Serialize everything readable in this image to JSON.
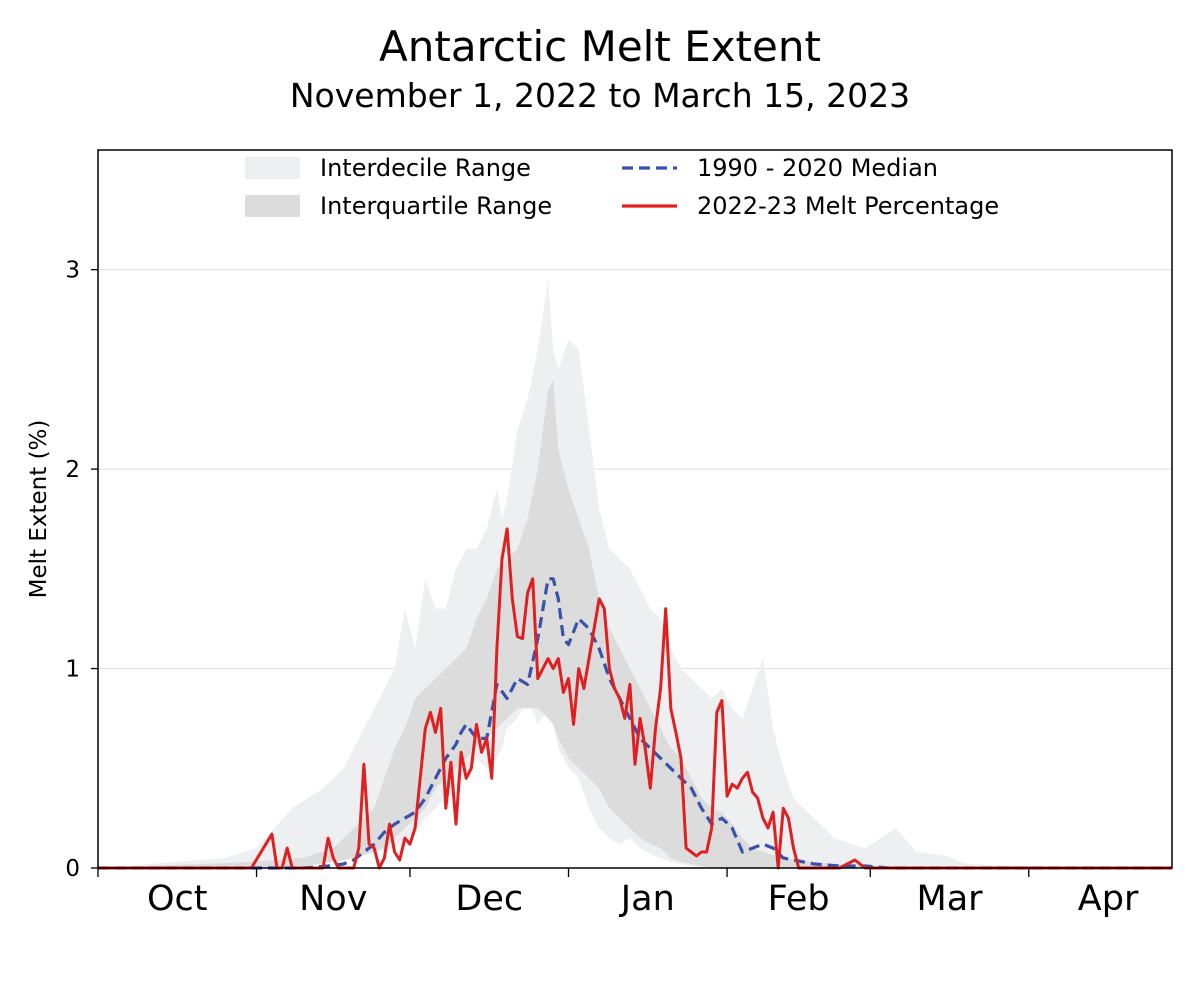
{
  "chart_data": {
    "type": "area",
    "title": "Antarctic Melt Extent",
    "subtitle": "November 1, 2022 to March 15, 2023",
    "ylabel": "Melt Extent (%)",
    "xlabel": "",
    "ylim": [
      0,
      3.6
    ],
    "xlim_days_from_oct1": [
      0,
      210
    ],
    "yticks": [
      0,
      1,
      2,
      3
    ],
    "grid": "horizontal",
    "legend_position": "top",
    "month_labels": [
      {
        "label": "Oct",
        "day": 0
      },
      {
        "label": "Nov",
        "day": 31
      },
      {
        "label": "Dec",
        "day": 61
      },
      {
        "label": "Jan",
        "day": 92
      },
      {
        "label": "Feb",
        "day": 123
      },
      {
        "label": "Mar",
        "day": 151
      },
      {
        "label": "Apr",
        "day": 182
      }
    ],
    "month_end_day": 213,
    "series": [
      {
        "name": "Interdecile Range",
        "kind": "band",
        "color": "#eeeff0",
        "x": [
          0,
          25,
          31,
          38,
          44,
          48,
          54,
          58,
          60,
          62,
          64,
          66,
          68,
          70,
          72,
          74,
          76,
          78,
          79,
          80,
          82,
          84,
          86,
          88,
          89,
          90,
          92,
          94,
          96,
          98,
          100,
          102,
          104,
          106,
          108,
          110,
          112,
          114,
          116,
          118,
          120,
          122,
          124,
          126,
          128,
          130,
          132,
          134,
          136,
          140,
          144,
          150,
          156,
          160,
          166,
          170,
          180,
          210
        ],
        "upper": [
          0,
          0.05,
          0.1,
          0.3,
          0.4,
          0.5,
          0.8,
          1.0,
          1.3,
          1.1,
          1.45,
          1.3,
          1.3,
          1.5,
          1.6,
          1.6,
          1.7,
          1.9,
          1.75,
          1.85,
          2.2,
          2.35,
          2.6,
          2.95,
          2.6,
          2.5,
          2.65,
          2.6,
          2.2,
          1.8,
          1.6,
          1.55,
          1.5,
          1.4,
          1.3,
          1.25,
          1.1,
          1.0,
          0.95,
          0.9,
          0.85,
          0.9,
          0.8,
          0.75,
          0.9,
          1.05,
          0.7,
          0.5,
          0.35,
          0.25,
          0.15,
          0.1,
          0.2,
          0.08,
          0.06,
          0.02,
          0.01,
          0
        ],
        "lower": [
          0,
          0,
          0,
          0,
          0.02,
          0.04,
          0.08,
          0.1,
          0.15,
          0.18,
          0.25,
          0.3,
          0.35,
          0.4,
          0.45,
          0.55,
          0.5,
          0.55,
          0.6,
          0.7,
          0.75,
          0.85,
          0.72,
          0.8,
          0.72,
          0.6,
          0.5,
          0.45,
          0.3,
          0.2,
          0.15,
          0.12,
          0.15,
          0.1,
          0.07,
          0.05,
          0.03,
          0.02,
          0.01,
          0,
          0,
          0,
          0,
          0,
          0,
          0,
          0,
          0,
          0,
          0,
          0,
          0,
          0,
          0,
          0,
          0,
          0,
          0
        ]
      },
      {
        "name": "Interquartile Range",
        "kind": "band",
        "color": "#dcdcdd",
        "x": [
          0,
          30,
          40,
          46,
          50,
          54,
          56,
          58,
          60,
          62,
          64,
          66,
          68,
          70,
          72,
          74,
          76,
          78,
          80,
          82,
          84,
          86,
          88,
          89,
          90,
          92,
          94,
          96,
          98,
          100,
          102,
          104,
          106,
          108,
          110,
          112,
          114,
          116,
          118,
          120,
          122,
          124,
          126,
          128,
          130,
          134,
          140,
          150,
          210
        ],
        "upper": [
          0,
          0.03,
          0.05,
          0.1,
          0.2,
          0.3,
          0.45,
          0.6,
          0.7,
          0.85,
          0.9,
          0.95,
          1.0,
          1.05,
          1.1,
          1.25,
          1.35,
          1.5,
          1.55,
          1.6,
          1.75,
          2.0,
          2.4,
          2.45,
          2.1,
          1.9,
          1.75,
          1.6,
          1.35,
          1.2,
          1.1,
          1.0,
          0.9,
          0.8,
          0.7,
          0.6,
          0.55,
          0.45,
          0.35,
          0.3,
          0.28,
          0.22,
          0.15,
          0.1,
          0.08,
          0.05,
          0.03,
          0.01,
          0
        ],
        "lower": [
          0,
          0,
          0.01,
          0.03,
          0.05,
          0.08,
          0.1,
          0.15,
          0.2,
          0.25,
          0.3,
          0.4,
          0.45,
          0.5,
          0.55,
          0.6,
          0.65,
          0.7,
          0.75,
          0.8,
          0.8,
          0.8,
          0.75,
          0.72,
          0.65,
          0.55,
          0.5,
          0.45,
          0.4,
          0.3,
          0.25,
          0.2,
          0.15,
          0.12,
          0.1,
          0.05,
          0.03,
          0.02,
          0.01,
          0,
          0,
          0,
          0,
          0,
          0,
          0,
          0,
          0,
          0
        ]
      },
      {
        "name": "1990 - 2020 Median",
        "kind": "line",
        "style": "dashed",
        "color": "#3a52a8",
        "x": [
          0,
          30,
          40,
          45,
          48,
          50,
          52,
          54,
          56,
          58,
          60,
          62,
          64,
          66,
          68,
          70,
          71,
          72,
          74,
          76,
          78,
          80,
          82,
          84,
          86,
          88,
          89,
          90,
          91,
          92,
          94,
          96,
          98,
          100,
          102,
          104,
          106,
          108,
          110,
          112,
          114,
          116,
          118,
          120,
          122,
          124,
          126,
          128,
          130,
          132,
          134,
          136,
          138,
          140,
          145,
          150,
          155,
          210
        ],
        "y": [
          0,
          0,
          0,
          0.01,
          0.02,
          0.04,
          0.08,
          0.12,
          0.18,
          0.22,
          0.25,
          0.28,
          0.35,
          0.45,
          0.55,
          0.62,
          0.68,
          0.72,
          0.65,
          0.65,
          0.92,
          0.85,
          0.95,
          0.92,
          1.15,
          1.45,
          1.45,
          1.35,
          1.15,
          1.12,
          1.25,
          1.2,
          1.1,
          0.95,
          0.85,
          0.75,
          0.65,
          0.6,
          0.55,
          0.5,
          0.45,
          0.4,
          0.3,
          0.22,
          0.25,
          0.2,
          0.08,
          0.1,
          0.12,
          0.1,
          0.05,
          0.04,
          0.03,
          0.02,
          0.01,
          0.01,
          0,
          0
        ]
      },
      {
        "name": "2022-23 Melt Percentage",
        "kind": "line",
        "style": "solid",
        "color": "#e02020",
        "x": [
          0,
          30,
          34,
          35,
          36,
          37,
          38,
          39,
          40,
          44,
          45,
          46,
          47,
          48,
          49,
          50,
          51,
          52,
          53,
          54,
          55,
          56,
          57,
          58,
          59,
          60,
          61,
          62,
          63,
          64,
          65,
          66,
          67,
          68,
          69,
          70,
          71,
          72,
          73,
          74,
          75,
          76,
          77,
          78,
          79,
          80,
          81,
          82,
          83,
          84,
          85,
          86,
          87,
          88,
          89,
          90,
          91,
          92,
          93,
          94,
          95,
          96,
          97,
          98,
          99,
          100,
          101,
          102,
          103,
          104,
          105,
          106,
          107,
          108,
          109,
          110,
          111,
          112,
          113,
          114,
          115,
          116,
          117,
          118,
          119,
          120,
          121,
          122,
          123,
          124,
          125,
          126,
          127,
          128,
          129,
          130,
          131,
          132,
          133,
          134,
          135,
          136,
          137,
          138,
          139,
          140,
          145,
          148,
          150,
          155,
          210
        ],
        "y": [
          0,
          0,
          0.17,
          0,
          0,
          0.1,
          0,
          0,
          0,
          0,
          0.15,
          0.05,
          0,
          0,
          0,
          0,
          0.1,
          0.52,
          0.12,
          0.1,
          0,
          0.05,
          0.22,
          0.08,
          0.04,
          0.15,
          0.12,
          0.2,
          0.45,
          0.7,
          0.78,
          0.68,
          0.8,
          0.3,
          0.53,
          0.22,
          0.58,
          0.45,
          0.5,
          0.72,
          0.58,
          0.65,
          0.45,
          1.1,
          1.55,
          1.7,
          1.35,
          1.16,
          1.15,
          1.38,
          1.45,
          0.95,
          1.0,
          1.05,
          1.0,
          1.05,
          0.88,
          0.95,
          0.72,
          1.0,
          0.9,
          1.05,
          1.2,
          1.35,
          1.3,
          1.0,
          0.9,
          0.85,
          0.75,
          0.92,
          0.52,
          0.75,
          0.6,
          0.4,
          0.7,
          0.9,
          1.3,
          0.8,
          0.68,
          0.55,
          0.1,
          0.08,
          0.06,
          0.08,
          0.08,
          0.2,
          0.78,
          0.84,
          0.36,
          0.42,
          0.4,
          0.45,
          0.48,
          0.38,
          0.35,
          0.25,
          0.2,
          0.28,
          0.0,
          0.3,
          0.25,
          0.1,
          0,
          0,
          0,
          0,
          0,
          0.04,
          0,
          0,
          0
        ]
      }
    ]
  }
}
